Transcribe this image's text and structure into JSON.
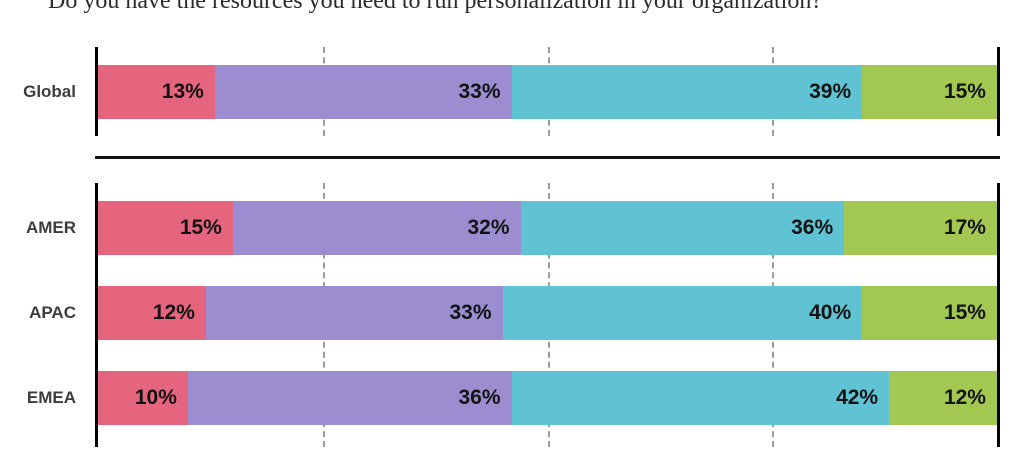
{
  "title": "Do you have the resources you need to run personalization in your organization?",
  "colors": {
    "pink": "#E5647E",
    "purple": "#9C8DD0",
    "teal": "#5FC3D3",
    "green": "#A3C852",
    "axis": "#000000",
    "divider": "#111111",
    "gridline": "#9b9b9b",
    "value_text": "#131313",
    "category_text": "#3d3d40"
  },
  "chart_data": {
    "type": "bar",
    "stacked": true,
    "orientation": "horizontal",
    "unit": "%",
    "title": "Do you have the resources you need to run personalization in your organization?",
    "categories": [
      "Global",
      "AMER",
      "APAC",
      "EMEA"
    ],
    "groups": [
      [
        "Global"
      ],
      [
        "AMER",
        "APAC",
        "EMEA"
      ]
    ],
    "series": [
      {
        "name": "pink",
        "color": "#E5647E",
        "values": [
          13,
          15,
          12,
          10
        ]
      },
      {
        "name": "purple",
        "color": "#9C8DD0",
        "values": [
          33,
          32,
          33,
          36
        ]
      },
      {
        "name": "teal",
        "color": "#5FC3D3",
        "values": [
          39,
          36,
          40,
          42
        ]
      },
      {
        "name": "green",
        "color": "#A3C852",
        "values": [
          15,
          17,
          15,
          12
        ]
      }
    ],
    "xlim": [
      0,
      100
    ],
    "gridlines_percent": [
      25,
      50,
      75
    ],
    "grid": "dashed-vertical",
    "legend": "none-visible",
    "value_labels": "inside-right-of-segment"
  }
}
